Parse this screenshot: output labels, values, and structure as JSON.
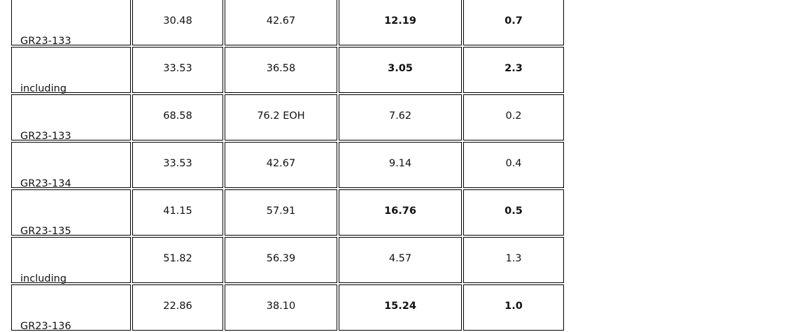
{
  "table": {
    "rows": [
      [
        "GR23-133",
        "30.48",
        "42.67",
        "12.19",
        "0.7"
      ],
      [
        "including",
        "33.53",
        "36.58",
        "3.05",
        "2.3"
      ],
      [
        "GR23-133",
        "68.58",
        "76.2 EOH",
        "7.62",
        "0.2"
      ],
      [
        "GR23-134",
        "33.53",
        "42.67",
        "9.14",
        "0.4"
      ],
      [
        "GR23-135",
        "41.15",
        "57.91",
        "16.76",
        "0.5"
      ],
      [
        "including",
        "51.82",
        "56.39",
        "4.57",
        "1.3"
      ],
      [
        "GR23-136",
        "22.86",
        "38.10",
        "15.24",
        "1.0"
      ]
    ]
  }
}
